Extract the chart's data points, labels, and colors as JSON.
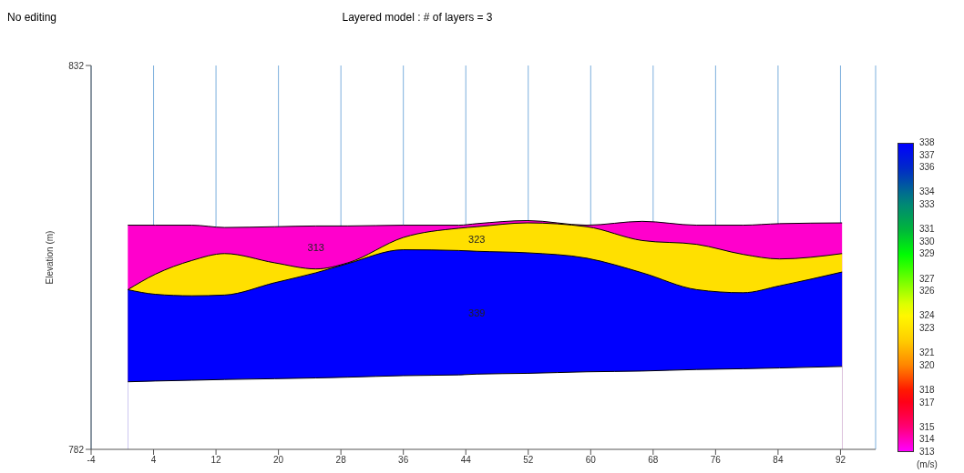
{
  "chart_data": {
    "type": "area",
    "title": "Layered model : # of layers = 3",
    "ylabel": "Elevation (m)",
    "clabel": "(m/s)",
    "annotations": [
      "No editing"
    ],
    "x": [
      0.7,
      4.2,
      8.9,
      13.1,
      19.5,
      24.8,
      28.9,
      36.0,
      43.1,
      45.4,
      51.9,
      59.5,
      66.6,
      73.6,
      79.5,
      84.2,
      92.2
    ],
    "series": [
      {
        "name": "313",
        "color": "#ff00cc",
        "values": [
          811.2,
          811.2,
          811.2,
          810.9,
          811.0,
          811.1,
          811.1,
          811.2,
          811.2,
          811.4,
          811.8,
          811.2,
          811.7,
          811.2,
          811.2,
          811.4,
          811.5
        ]
      },
      {
        "name": "323",
        "color": "#ffe000",
        "values": [
          802.8,
          804.8,
          806.6,
          807.5,
          806.3,
          805.5,
          806.3,
          809.6,
          810.8,
          811.0,
          811.5,
          811.0,
          809.2,
          808.7,
          807.4,
          806.8,
          807.5
        ]
      },
      {
        "name": "339",
        "color": "#0000ff",
        "values": [
          802.8,
          802.2,
          802.0,
          802.1,
          803.7,
          805.0,
          806.2,
          808.0,
          807.9,
          807.8,
          807.6,
          806.9,
          805.0,
          802.8,
          802.4,
          803.3,
          805.1
        ]
      },
      {
        "color": "#ffffff",
        "values": [
          790.8,
          790.9,
          791.0,
          791.1,
          791.2,
          791.3,
          791.4,
          791.6,
          791.7,
          791.8,
          791.9,
          792.1,
          792.2,
          792.4,
          792.5,
          792.6,
          792.8
        ]
      }
    ],
    "xlim": [
      -4,
      96.5
    ],
    "xticks": [
      -4,
      4,
      12,
      20,
      28,
      36,
      44,
      52,
      60,
      68,
      76,
      84,
      92
    ],
    "ylim": [
      782,
      832
    ],
    "yticks": [
      782,
      832
    ],
    "clim": [
      313,
      338
    ],
    "cticks": [
      338,
      337,
      336,
      334,
      333,
      331,
      330,
      329,
      327,
      326,
      324,
      323,
      321,
      320,
      318,
      317,
      315,
      314,
      313
    ],
    "grid": "x"
  }
}
